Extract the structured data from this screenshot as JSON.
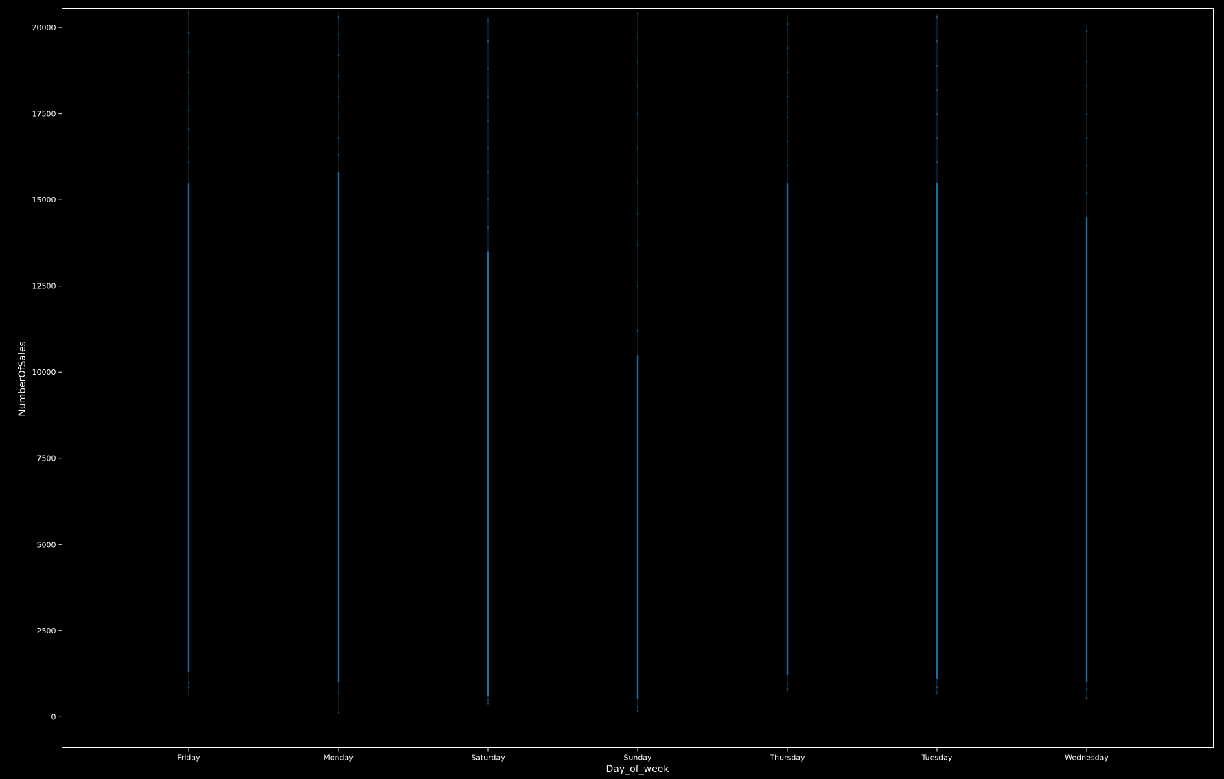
{
  "chart_data": {
    "type": "scatter",
    "title": "",
    "xlabel": "Day_of_week",
    "ylabel": "NumberOfSales",
    "categories": [
      "Friday",
      "Monday",
      "Saturday",
      "Sunday",
      "Thursday",
      "Tuesday",
      "Wednesday"
    ],
    "ylim": [
      -900,
      20550
    ],
    "yticks": [
      0,
      2500,
      5000,
      7500,
      10000,
      12500,
      15000,
      17500,
      20000
    ],
    "grid": false,
    "legend": "none",
    "background_color": "#000000",
    "axis_color": "#ffffff",
    "point_color": "#1f77b4",
    "series": [
      {
        "category": "Friday",
        "range": [
          600,
          20500
        ],
        "dense_range": [
          1300,
          15500
        ],
        "outlier_samples": [
          850,
          980,
          16100,
          16500,
          17050,
          17600,
          18100,
          18700,
          19300,
          19850,
          20400
        ]
      },
      {
        "category": "Monday",
        "range": [
          100,
          20450
        ],
        "dense_range": [
          1000,
          15800
        ],
        "outlier_samples": [
          120,
          700,
          16300,
          16800,
          17400,
          18000,
          18600,
          19200,
          19800,
          20300
        ]
      },
      {
        "category": "Saturday",
        "range": [
          350,
          20300
        ],
        "dense_range": [
          600,
          13500
        ],
        "outlier_samples": [
          380,
          470,
          14200,
          15000,
          15800,
          16500,
          17300,
          18000,
          18800,
          19600,
          20200
        ]
      },
      {
        "category": "Sunday",
        "range": [
          150,
          20450
        ],
        "dense_range": [
          500,
          10500
        ],
        "outlier_samples": [
          170,
          300,
          11200,
          12500,
          13700,
          14600,
          15500,
          16500,
          17500,
          18300,
          19000,
          19700,
          20400
        ]
      },
      {
        "category": "Thursday",
        "range": [
          700,
          20400
        ],
        "dense_range": [
          1200,
          15500
        ],
        "outlier_samples": [
          800,
          950,
          16000,
          16700,
          17400,
          18000,
          18700,
          19400,
          20100
        ]
      },
      {
        "category": "Tuesday",
        "range": [
          650,
          20400
        ],
        "dense_range": [
          1100,
          15500
        ],
        "outlier_samples": [
          700,
          850,
          16100,
          16800,
          17500,
          18200,
          18900,
          19600,
          20300
        ]
      },
      {
        "category": "Wednesday",
        "range": [
          500,
          20100
        ],
        "dense_range": [
          1000,
          14500
        ],
        "outlier_samples": [
          550,
          800,
          15200,
          16000,
          16800,
          17500,
          18300,
          19000,
          19900
        ]
      }
    ]
  }
}
